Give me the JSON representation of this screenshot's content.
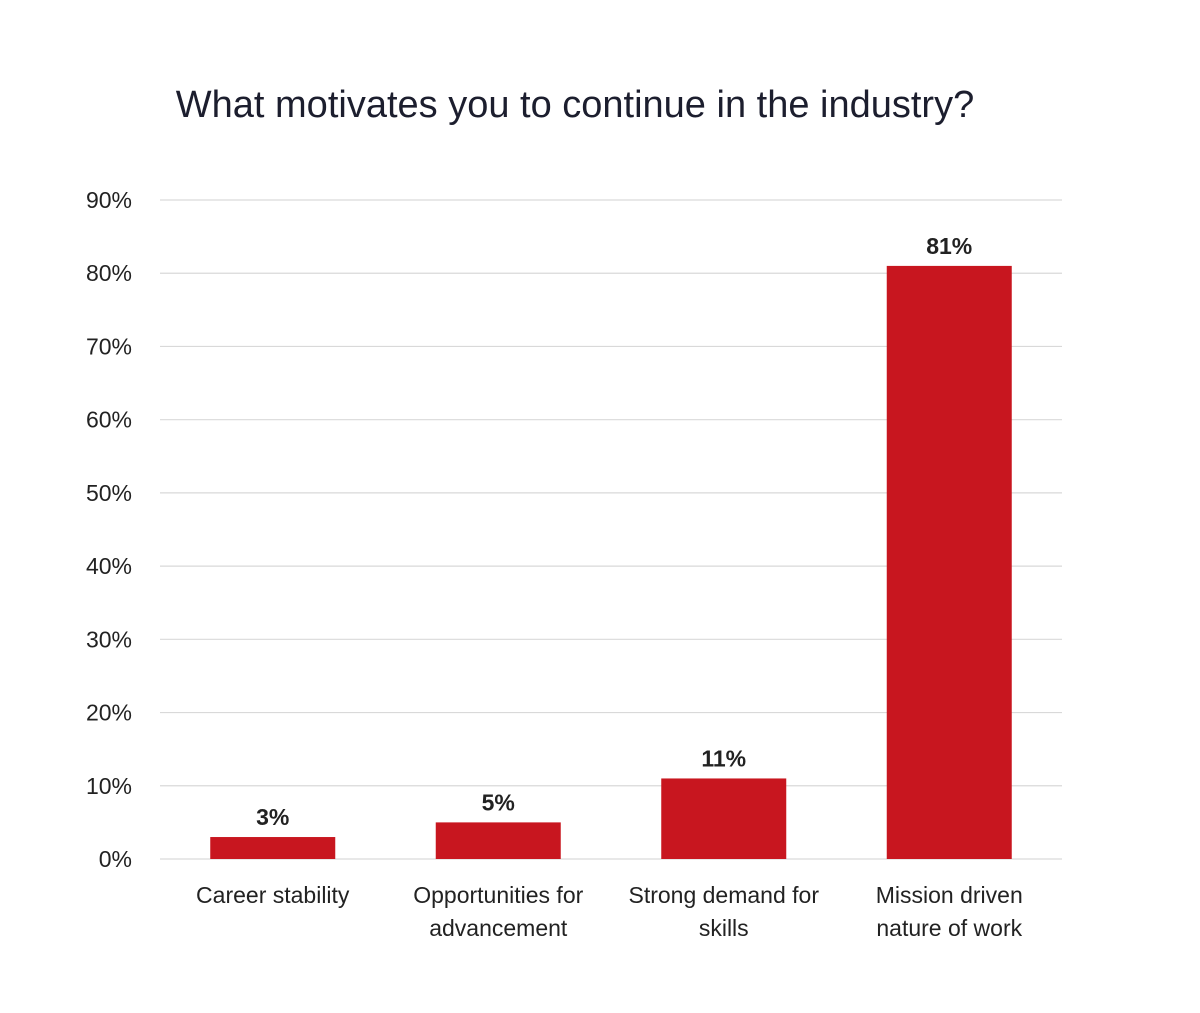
{
  "chart_data": {
    "type": "bar",
    "title": "What motivates you to continue in the industry?",
    "xlabel": "",
    "ylabel": "",
    "categories": [
      [
        "Career stability"
      ],
      [
        "Opportunities for",
        "advancement"
      ],
      [
        "Strong demand for",
        "skills"
      ],
      [
        "Mission driven",
        "nature of work"
      ]
    ],
    "values": [
      3,
      5,
      11,
      81
    ],
    "data_labels": [
      "3%",
      "5%",
      "11%",
      "81%"
    ],
    "ylim": [
      0,
      90
    ],
    "yticks": [
      0,
      10,
      20,
      30,
      40,
      50,
      60,
      70,
      80,
      90
    ],
    "ytick_labels": [
      "0%",
      "10%",
      "20%",
      "30%",
      "40%",
      "50%",
      "60%",
      "70%",
      "80%",
      "90%"
    ],
    "grid": true,
    "legend": "none",
    "bar_color": "#C8161F",
    "grid_color": "#d9d9d9"
  }
}
